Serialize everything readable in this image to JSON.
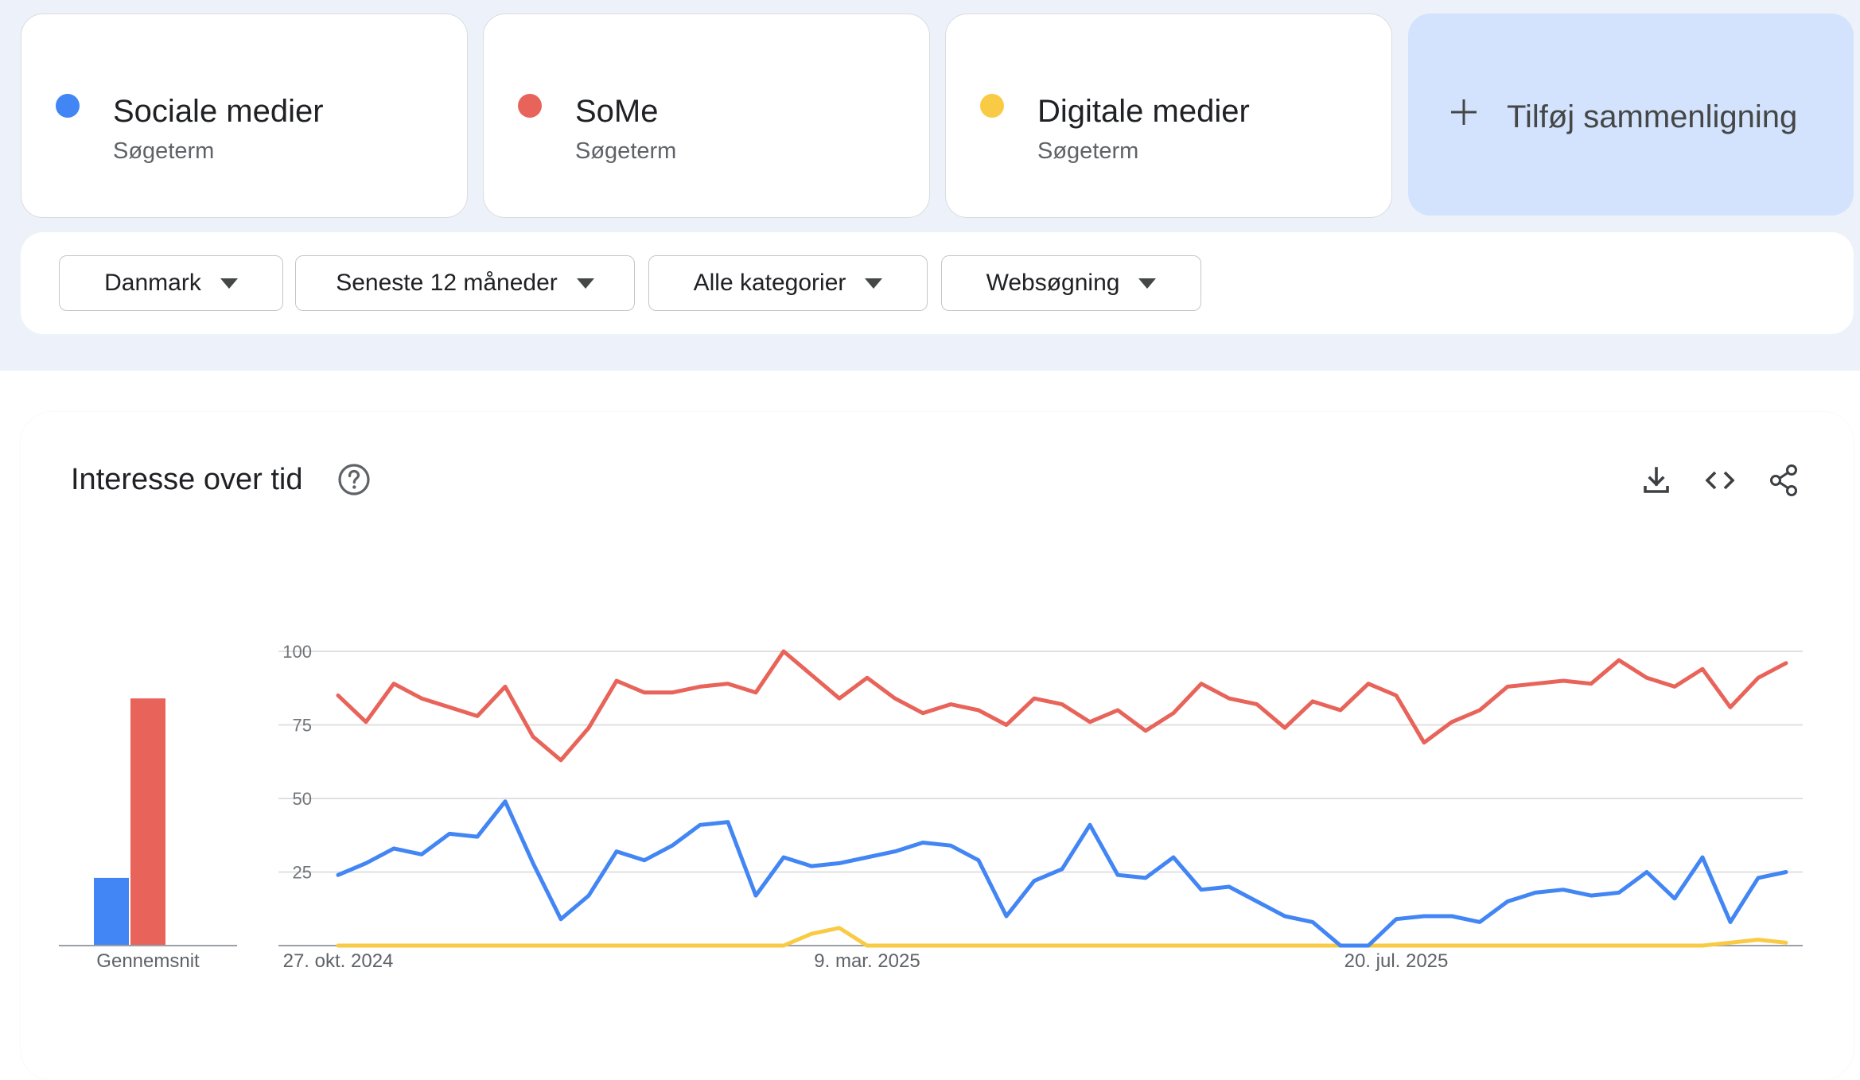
{
  "terms": [
    {
      "name": "Sociale medier",
      "subtitle": "Søgeterm",
      "color": "#4285f4"
    },
    {
      "name": "SoMe",
      "subtitle": "Søgeterm",
      "color": "#e8645a"
    },
    {
      "name": "Digitale medier",
      "subtitle": "Søgeterm",
      "color": "#f9cb45"
    }
  ],
  "add_comparison": {
    "label": "Tilføj sammenligning",
    "icon": "plus-icon"
  },
  "filters": [
    {
      "label": "Danmark"
    },
    {
      "label": "Seneste 12 måneder"
    },
    {
      "label": "Alle kategorier"
    },
    {
      "label": "Websøgning"
    }
  ],
  "section": {
    "title": "Interesse over tid",
    "icons": [
      "help-icon",
      "download-icon",
      "embed-code-icon",
      "share-icon"
    ]
  },
  "average_label": "Gennemsnit",
  "chart_data": {
    "type": "line",
    "title": "Interesse over tid",
    "ylim": [
      0,
      100
    ],
    "y_ticks": [
      "100",
      "75",
      "50",
      "25"
    ],
    "x_tick_labels": [
      {
        "index": 0,
        "label": "27. okt. 2024"
      },
      {
        "index": 19,
        "label": "9. mar. 2025"
      },
      {
        "index": 38,
        "label": "20. jul. 2025"
      }
    ],
    "grid": true,
    "series": [
      {
        "name": "Sociale medier",
        "color": "#4285f4",
        "values": [
          24,
          28,
          33,
          31,
          38,
          37,
          49,
          28,
          9,
          17,
          32,
          29,
          34,
          41,
          42,
          17,
          30,
          27,
          28,
          30,
          32,
          35,
          34,
          29,
          10,
          22,
          26,
          41,
          24,
          23,
          30,
          19,
          20,
          15,
          10,
          8,
          0,
          0,
          9,
          10,
          10,
          8,
          15,
          18,
          19,
          17,
          18,
          25,
          16,
          30,
          8,
          23,
          25
        ]
      },
      {
        "name": "SoMe",
        "color": "#e8645a",
        "values": [
          85,
          76,
          89,
          84,
          81,
          78,
          88,
          71,
          63,
          74,
          90,
          86,
          86,
          88,
          89,
          86,
          100,
          92,
          84,
          91,
          84,
          79,
          82,
          80,
          75,
          84,
          82,
          76,
          80,
          73,
          79,
          89,
          84,
          82,
          74,
          83,
          80,
          89,
          85,
          69,
          76,
          80,
          88,
          89,
          90,
          89,
          97,
          91,
          88,
          94,
          81,
          91,
          96
        ]
      },
      {
        "name": "Digitale medier",
        "color": "#f9cb45",
        "values": [
          0,
          0,
          0,
          0,
          0,
          0,
          0,
          0,
          0,
          0,
          0,
          0,
          0,
          0,
          0,
          0,
          0,
          4,
          6,
          0,
          0,
          0,
          0,
          0,
          0,
          0,
          0,
          0,
          0,
          0,
          0,
          0,
          0,
          0,
          0,
          0,
          0,
          0,
          0,
          0,
          0,
          0,
          0,
          0,
          0,
          0,
          0,
          0,
          0,
          0,
          1,
          2,
          1
        ]
      }
    ],
    "averages": [
      {
        "name": "Sociale medier",
        "value": 23,
        "color": "#4285f4"
      },
      {
        "name": "SoMe",
        "value": 84,
        "color": "#e8645a"
      }
    ]
  }
}
